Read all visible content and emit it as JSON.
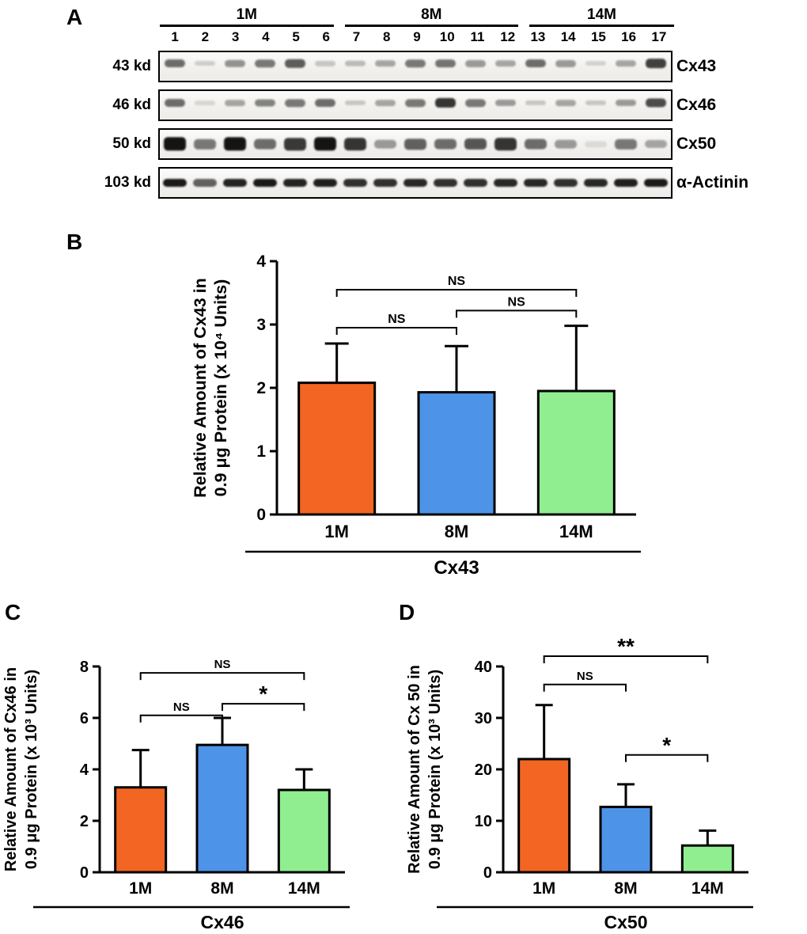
{
  "panels": {
    "a": "A",
    "b": "B",
    "c": "C",
    "d": "D"
  },
  "blot": {
    "groups": [
      {
        "label": "1M",
        "lanes": 6
      },
      {
        "label": "8M",
        "lanes": 6
      },
      {
        "label": "14M",
        "lanes": 5
      }
    ],
    "lane_numbers": [
      "1",
      "2",
      "3",
      "4",
      "5",
      "6",
      "7",
      "8",
      "9",
      "10",
      "11",
      "12",
      "13",
      "14",
      "15",
      "16",
      "17"
    ],
    "rows": [
      {
        "weight": "43 kd",
        "protein": "Cx43",
        "band_intensities": [
          0.55,
          0.12,
          0.38,
          0.5,
          0.62,
          0.15,
          0.2,
          0.3,
          0.5,
          0.52,
          0.35,
          0.3,
          0.55,
          0.35,
          0.1,
          0.3,
          0.75
        ]
      },
      {
        "weight": "46 kd",
        "protein": "Cx46",
        "band_intensities": [
          0.55,
          0.08,
          0.3,
          0.45,
          0.5,
          0.55,
          0.15,
          0.3,
          0.5,
          0.8,
          0.5,
          0.35,
          0.15,
          0.3,
          0.15,
          0.35,
          0.7
        ]
      },
      {
        "weight": "50 kd",
        "protein": "Cx50",
        "band_intensities": [
          0.95,
          0.5,
          0.95,
          0.55,
          0.78,
          0.95,
          0.8,
          0.35,
          0.6,
          0.55,
          0.65,
          0.8,
          0.55,
          0.35,
          0.05,
          0.5,
          0.3
        ]
      },
      {
        "weight": "103 kd",
        "protein": "α-Actinin",
        "band_intensities": [
          0.92,
          0.6,
          0.88,
          0.92,
          0.88,
          0.9,
          0.82,
          0.82,
          0.86,
          0.82,
          0.82,
          0.86,
          0.86,
          0.82,
          0.86,
          0.9,
          0.92
        ]
      }
    ]
  },
  "chart_data": [
    {
      "panel": "B",
      "type": "bar",
      "categories": [
        "1M",
        "8M",
        "14M"
      ],
      "values": [
        2.08,
        1.93,
        1.95
      ],
      "errors": [
        0.62,
        0.73,
        1.03
      ],
      "bar_colors": [
        "#F26522",
        "#4D94E8",
        "#90EE90"
      ],
      "ylim": [
        0,
        4
      ],
      "yticks": [
        0,
        1,
        2,
        3,
        4
      ],
      "ylabel_lines": [
        "Relative Amount of Cx43 in",
        "0.9 μg Protein (x 10⁴ Units)"
      ],
      "xlabel": "Cx43",
      "legend": "none",
      "grid": false,
      "comparisons": [
        {
          "from": 0,
          "to": 2,
          "label": "NS",
          "y": 3.55
        },
        {
          "from": 1,
          "to": 2,
          "label": "NS",
          "y": 3.22
        },
        {
          "from": 0,
          "to": 1,
          "label": "NS",
          "y": 2.95
        }
      ]
    },
    {
      "panel": "C",
      "type": "bar",
      "categories": [
        "1M",
        "8M",
        "14M"
      ],
      "values": [
        3.3,
        4.95,
        3.2
      ],
      "errors": [
        1.45,
        1.05,
        0.8
      ],
      "bar_colors": [
        "#F26522",
        "#4D94E8",
        "#90EE90"
      ],
      "ylim": [
        0,
        8
      ],
      "yticks": [
        0,
        2,
        4,
        6,
        8
      ],
      "ylabel_lines": [
        "Relative Amount of Cx46 in",
        "0.9 μg Protein (x 10³ Units)"
      ],
      "xlabel": "Cx46",
      "legend": "none",
      "grid": false,
      "comparisons": [
        {
          "from": 0,
          "to": 2,
          "label": "NS",
          "y": 7.75
        },
        {
          "from": 0,
          "to": 1,
          "label": "NS",
          "y": 6.1
        },
        {
          "from": 1,
          "to": 2,
          "label": "*",
          "y": 6.55
        }
      ]
    },
    {
      "panel": "D",
      "type": "bar",
      "categories": [
        "1M",
        "8M",
        "14M"
      ],
      "values": [
        22,
        12.7,
        5.2
      ],
      "errors": [
        10.5,
        4.4,
        2.9
      ],
      "bar_colors": [
        "#F26522",
        "#4D94E8",
        "#90EE90"
      ],
      "ylim": [
        0,
        40
      ],
      "yticks": [
        0,
        10,
        20,
        30,
        40
      ],
      "ylabel_lines": [
        "Relative Amount of Cx 50 in",
        "0.9 μg Protein (x 10³ Units)"
      ],
      "xlabel": "Cx50",
      "legend": "none",
      "grid": false,
      "comparisons": [
        {
          "from": 0,
          "to": 2,
          "label": "**",
          "y": 42
        },
        {
          "from": 0,
          "to": 1,
          "label": "NS",
          "y": 36.5
        },
        {
          "from": 1,
          "to": 2,
          "label": "*",
          "y": 22.8
        }
      ]
    }
  ]
}
